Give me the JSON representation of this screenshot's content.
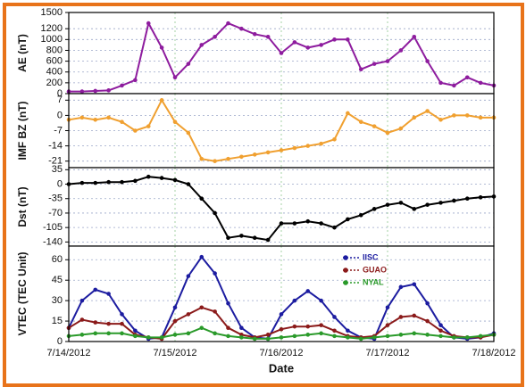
{
  "chart_data": [
    {
      "type": "line",
      "ylabel": "AE (nT)",
      "xlim": [
        0,
        4
      ],
      "xticks": [
        0,
        1,
        2,
        3,
        4
      ],
      "ylim": [
        0,
        1500
      ],
      "yticks": [
        0,
        200,
        400,
        600,
        800,
        1000,
        1200,
        1500
      ],
      "grid": true,
      "x": [
        0,
        0.125,
        0.25,
        0.375,
        0.5,
        0.625,
        0.75,
        0.875,
        1,
        1.125,
        1.25,
        1.375,
        1.5,
        1.625,
        1.75,
        1.875,
        2,
        2.125,
        2.25,
        2.375,
        2.5,
        2.625,
        2.75,
        2.875,
        3,
        3.125,
        3.25,
        3.375,
        3.5,
        3.625,
        3.75,
        3.875,
        4
      ],
      "series": [
        {
          "name": "AE",
          "color": "#8e1c9e",
          "values": [
            40,
            40,
            50,
            60,
            150,
            250,
            1300,
            850,
            300,
            550,
            900,
            1050,
            1300,
            1200,
            1100,
            1050,
            750,
            950,
            850,
            900,
            1000,
            1000,
            450,
            550,
            600,
            800,
            1050,
            600,
            200,
            150,
            300,
            200,
            150
          ]
        }
      ]
    },
    {
      "type": "line",
      "ylabel": "IMF BZ (nT)",
      "xlim": [
        0,
        4
      ],
      "xticks": [
        0,
        1,
        2,
        3,
        4
      ],
      "ylim": [
        -24,
        10
      ],
      "yticks": [
        -21,
        -14,
        -7,
        0,
        7
      ],
      "grid": true,
      "x": [
        0,
        0.125,
        0.25,
        0.375,
        0.5,
        0.625,
        0.75,
        0.875,
        1,
        1.125,
        1.25,
        1.375,
        1.5,
        1.625,
        1.75,
        1.875,
        2,
        2.125,
        2.25,
        2.375,
        2.5,
        2.625,
        2.75,
        2.875,
        3,
        3.125,
        3.25,
        3.375,
        3.5,
        3.625,
        3.75,
        3.875,
        4
      ],
      "series": [
        {
          "name": "IMF BZ",
          "color": "#f0a030",
          "values": [
            -2,
            -1,
            -2,
            -1,
            -3,
            -7,
            -5,
            7,
            -3,
            -8,
            -20,
            -21,
            -20,
            -19,
            -18,
            -17,
            -16,
            -15,
            -14,
            -13,
            -11,
            1,
            -3,
            -5,
            -8,
            -6,
            -1,
            2,
            -2,
            0,
            0,
            -1,
            -1
          ]
        }
      ]
    },
    {
      "type": "line",
      "ylabel": "Dst (nT)",
      "xlim": [
        0,
        4
      ],
      "xticks": [
        0,
        1,
        2,
        3,
        4
      ],
      "ylim": [
        -150,
        40
      ],
      "yticks": [
        -140,
        -105,
        -70,
        -35,
        0,
        35
      ],
      "grid": true,
      "x": [
        0,
        0.125,
        0.25,
        0.375,
        0.5,
        0.625,
        0.75,
        0.875,
        1,
        1.125,
        1.25,
        1.375,
        1.5,
        1.625,
        1.75,
        1.875,
        2,
        2.125,
        2.25,
        2.375,
        2.5,
        2.625,
        2.75,
        2.875,
        3,
        3.125,
        3.25,
        3.375,
        3.5,
        3.625,
        3.75,
        3.875,
        4
      ],
      "series": [
        {
          "name": "Dst",
          "color": "#000000",
          "values": [
            0,
            3,
            3,
            5,
            5,
            8,
            18,
            15,
            10,
            0,
            -35,
            -70,
            -130,
            -125,
            -130,
            -135,
            -95,
            -95,
            -90,
            -95,
            -105,
            -85,
            -75,
            -60,
            -50,
            -45,
            -60,
            -50,
            -45,
            -40,
            -35,
            -32,
            -30
          ]
        }
      ]
    },
    {
      "type": "line",
      "ylabel": "VTEC (TEC Unit)",
      "xlabel": "Date",
      "xlim": [
        0,
        4
      ],
      "xticks": [
        {
          "value": 0,
          "label": "7/14/2012"
        },
        {
          "value": 1,
          "label": "7/15/2012"
        },
        {
          "value": 2,
          "label": "7/16/2012"
        },
        {
          "value": 3,
          "label": "7/17/2012"
        },
        {
          "value": 4,
          "label": "7/18/2012"
        }
      ],
      "ylim": [
        0,
        70
      ],
      "yticks": [
        0,
        15,
        30,
        45,
        60
      ],
      "grid": true,
      "legend": true,
      "x": [
        0,
        0.125,
        0.25,
        0.375,
        0.5,
        0.625,
        0.75,
        0.875,
        1,
        1.125,
        1.25,
        1.375,
        1.5,
        1.625,
        1.75,
        1.875,
        2,
        2.125,
        2.25,
        2.375,
        2.5,
        2.625,
        2.75,
        2.875,
        3,
        3.125,
        3.25,
        3.375,
        3.5,
        3.625,
        3.75,
        3.875,
        4
      ],
      "series": [
        {
          "name": "IISC",
          "color": "#1c1ca0",
          "values": [
            10,
            30,
            38,
            35,
            20,
            8,
            2,
            3,
            25,
            48,
            62,
            50,
            28,
            10,
            3,
            2,
            20,
            30,
            37,
            30,
            18,
            8,
            3,
            2,
            25,
            40,
            42,
            28,
            12,
            3,
            2,
            3,
            6
          ]
        },
        {
          "name": "GUAO",
          "color": "#8b1a1a",
          "values": [
            10,
            16,
            14,
            13,
            13,
            5,
            3,
            2,
            15,
            20,
            25,
            22,
            10,
            5,
            3,
            5,
            9,
            11,
            11,
            12,
            8,
            4,
            3,
            4,
            12,
            18,
            19,
            15,
            8,
            4,
            3,
            3,
            5
          ]
        },
        {
          "name": "NYAL",
          "color": "#2a9a2a",
          "values": [
            4,
            5,
            6,
            6,
            6,
            4,
            3,
            3,
            5,
            6,
            10,
            6,
            4,
            3,
            2,
            2,
            3,
            4,
            5,
            6,
            4,
            3,
            2,
            3,
            4,
            5,
            6,
            5,
            4,
            3,
            3,
            4,
            5
          ]
        }
      ]
    }
  ]
}
